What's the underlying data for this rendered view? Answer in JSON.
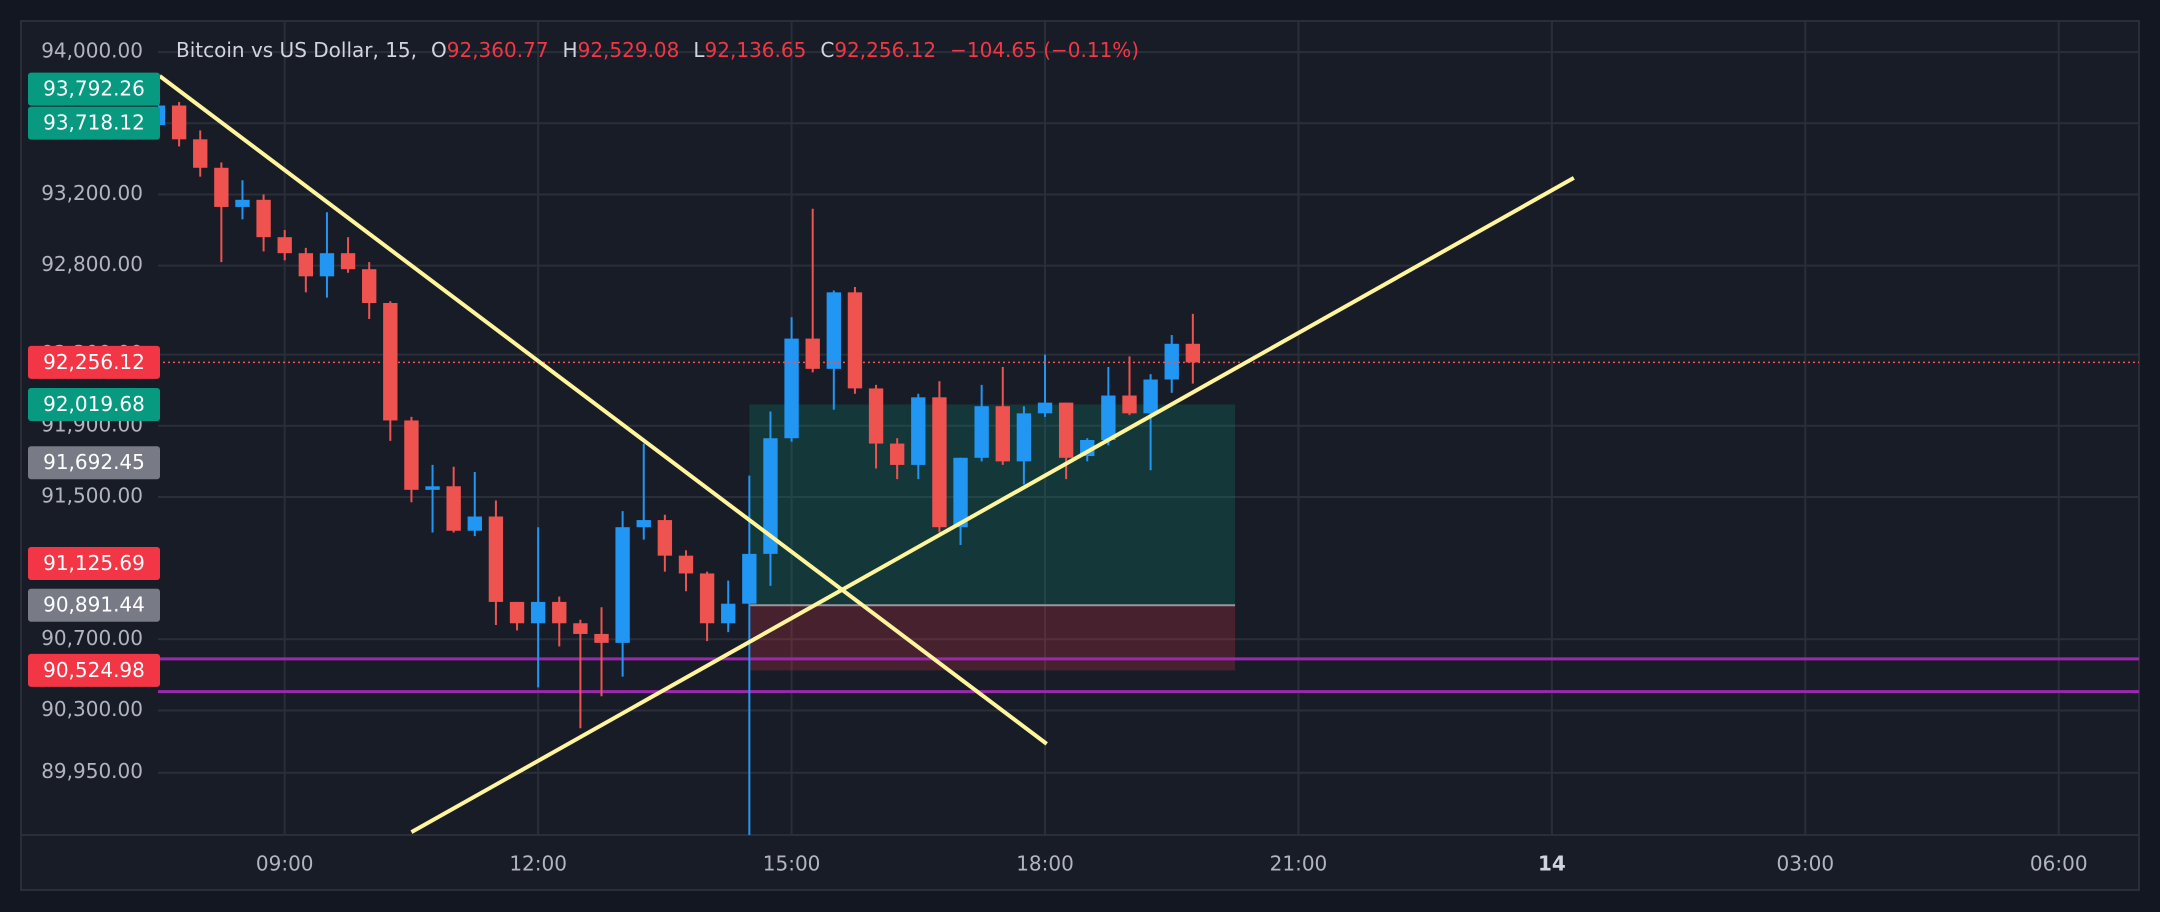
{
  "chart_data": {
    "type": "candlestick",
    "header": {
      "title": "Bitcoin vs US Dollar, 15,",
      "fields": [
        {
          "key": "O",
          "text": "92,360.77"
        },
        {
          "key": "H",
          "text": "92,529.08"
        },
        {
          "key": "L",
          "text": "92,136.65"
        },
        {
          "key": "C",
          "text": "92,256.12"
        }
      ],
      "change": "−104.65 (−0.11%)",
      "value_color": "#f23645"
    },
    "x": [
      7.5,
      7.75,
      8,
      8.25,
      8.5,
      8.75,
      9,
      9.25,
      9.5,
      9.75,
      10,
      10.25,
      10.5,
      10.75,
      11,
      11.25,
      11.5,
      11.75,
      12,
      12.25,
      12.5,
      12.75,
      13,
      13.25,
      13.5,
      13.75,
      14,
      14.25,
      14.5,
      14.75,
      15,
      15.25,
      15.5,
      15.75,
      16,
      16.25,
      16.5,
      16.75,
      17,
      17.25,
      17.5,
      17.75,
      18,
      18.25,
      18.5,
      18.75,
      19,
      19.25,
      19.5,
      19.75
    ],
    "open": [
      93590,
      93700,
      93510,
      93350,
      93130,
      93170,
      92960,
      92870,
      92740,
      92870,
      92780,
      92590,
      91930,
      91540,
      91560,
      91310,
      91390,
      90910,
      90790,
      90910,
      90790,
      90730,
      90680,
      91330,
      91370,
      91170,
      91070,
      90790,
      90900,
      91180,
      91830,
      92390,
      92220,
      92650,
      92110,
      91800,
      91680,
      92060,
      91330,
      91720,
      92010,
      91700,
      91970,
      92030,
      91730,
      91820,
      92070,
      91970,
      92160,
      92360.77
    ],
    "high": [
      93720,
      93720,
      93560,
      93380,
      93280,
      93200,
      93000,
      92900,
      93100,
      92960,
      92820,
      92600,
      91950,
      91680,
      91670,
      91640,
      91480,
      90910,
      91330,
      90940,
      90810,
      90880,
      91420,
      91800,
      91400,
      91200,
      91080,
      91030,
      91620,
      91980,
      92510,
      93120,
      92660,
      92680,
      92130,
      91830,
      92080,
      92150,
      91720,
      92130,
      92230,
      92010,
      92300,
      92030,
      91830,
      92230,
      92290,
      92190,
      92410,
      92529.08
    ],
    "low": [
      93560,
      93470,
      93300,
      92820,
      93060,
      92880,
      92830,
      92650,
      92620,
      92760,
      92500,
      91815,
      91470,
      91300,
      91300,
      91280,
      90780,
      90750,
      90430,
      90660,
      90200,
      90380,
      90490,
      91260,
      91080,
      90970,
      90690,
      90740,
      89600,
      91000,
      91810,
      92200,
      91990,
      92080,
      91660,
      91600,
      91600,
      91300,
      91230,
      91700,
      91680,
      91570,
      91950,
      91600,
      91700,
      91790,
      91960,
      91650,
      92085,
      92136.65
    ],
    "close": [
      93700,
      93510,
      93350,
      93130,
      93170,
      92960,
      92870,
      92740,
      92870,
      92780,
      92590,
      91930,
      91540,
      91560,
      91310,
      91390,
      90910,
      90790,
      90910,
      90790,
      90730,
      90680,
      91330,
      91370,
      91170,
      91070,
      90790,
      90900,
      91180,
      91830,
      92390,
      92220,
      92650,
      92110,
      91800,
      91680,
      92060,
      91330,
      91720,
      92010,
      91700,
      91970,
      92030,
      91720,
      91820,
      92070,
      91970,
      92160,
      92360.77,
      92256.12
    ],
    "up_color": "#2196f3",
    "down_color": "#ef5350",
    "xlim": [
      7.5,
      30.95
    ],
    "xticks": [
      {
        "value": 9,
        "label": "09:00"
      },
      {
        "value": 12,
        "label": "12:00"
      },
      {
        "value": 15,
        "label": "15:00"
      },
      {
        "value": 18,
        "label": "18:00"
      },
      {
        "value": 21,
        "label": "21:00"
      },
      {
        "value": 24,
        "label": "14"
      },
      {
        "value": 27,
        "label": "03:00"
      },
      {
        "value": 30,
        "label": "06:00"
      }
    ],
    "ylim": [
      89600,
      94175
    ],
    "yticks": [
      {
        "value": 94000,
        "label": "94,000.00"
      },
      {
        "value": 93600,
        "label": "93,600.00"
      },
      {
        "value": 93200,
        "label": "93,200.00"
      },
      {
        "value": 92800,
        "label": "92,800.00"
      },
      {
        "value": 92300,
        "label": "92,300.00"
      },
      {
        "value": 91900,
        "label": "91,900.00"
      },
      {
        "value": 91500,
        "label": "91,500.00"
      },
      {
        "value": 90700,
        "label": "90,700.00"
      },
      {
        "value": 90300,
        "label": "90,300.00"
      },
      {
        "value": 89950,
        "label": "89,950.00"
      }
    ],
    "grid": true,
    "price_labels": [
      {
        "value": 93792.26,
        "label": "93,792.26",
        "color": "#089981"
      },
      {
        "value": 93718.12,
        "label": "93,718.12",
        "color": "#089981"
      },
      {
        "value": 92256.12,
        "label": "92,256.12",
        "color": "#f23645"
      },
      {
        "value": 92019.68,
        "label": "92,019.68",
        "color": "#089981"
      },
      {
        "value": 91692.45,
        "label": "91,692.45",
        "color": "#787b86"
      },
      {
        "value": 91125.69,
        "label": "91,125.69",
        "color": "#f23645"
      },
      {
        "value": 90891.44,
        "label": "90,891.44",
        "color": "#787b86"
      },
      {
        "value": 90524.98,
        "label": "90,524.98",
        "color": "#f23645"
      }
    ],
    "trend_lines": [
      {
        "x": [
          7.52,
          18.02
        ],
        "y": [
          93866,
          90112
        ],
        "color": "#fff59d"
      },
      {
        "x": [
          10.5,
          24.26
        ],
        "y": [
          89616,
          93293
        ],
        "color": "#fff59d"
      }
    ],
    "horizontal_lines": [
      {
        "value": 90590,
        "color": "#9c27b0"
      },
      {
        "value": 90406,
        "color": "#9c27b0"
      }
    ],
    "position": {
      "x": [
        14.5,
        20.25
      ],
      "entry": 90891.44,
      "target": 92019.68,
      "stop": 90524.98
    }
  }
}
